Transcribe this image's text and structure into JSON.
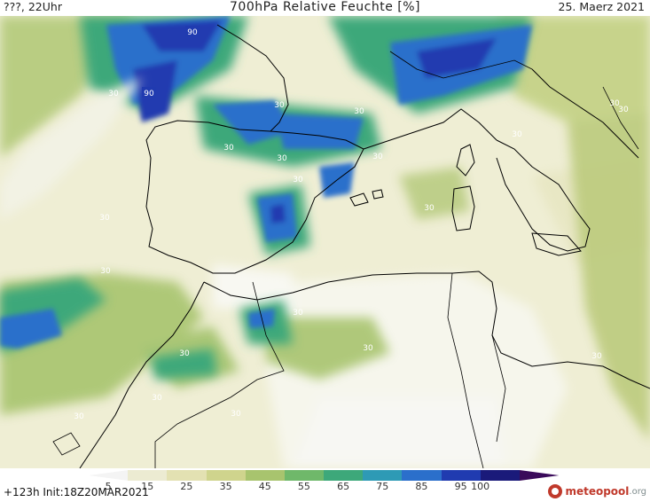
{
  "header": {
    "left": "???, 22Uhr",
    "title": "700hPa Relative Feuchte [%]",
    "date": "25. Maerz 2021"
  },
  "footer": {
    "init": "+123h  Init:18Z20MAR2021",
    "brand": "meteopool",
    "brand_tld": ".org"
  },
  "legend": {
    "ticks": [
      "5",
      "15",
      "25",
      "35",
      "45",
      "55",
      "65",
      "75",
      "85",
      "95",
      "100"
    ],
    "colors": [
      "#f4f4f4",
      "#ecebd2",
      "#e3e1b2",
      "#cfd48d",
      "#a8c46e",
      "#6fb86a",
      "#3da87a",
      "#2e9ab5",
      "#2b6fcb",
      "#203bb0",
      "#1a1a7a",
      "#3a0a5a"
    ]
  },
  "contour_labels": [
    "90",
    "90",
    "30",
    "30",
    "30",
    "30",
    "30",
    "30",
    "30",
    "30",
    "30",
    "30",
    "30",
    "30",
    "30",
    "30",
    "30",
    "30",
    "30",
    "30",
    "30",
    "30"
  ]
}
